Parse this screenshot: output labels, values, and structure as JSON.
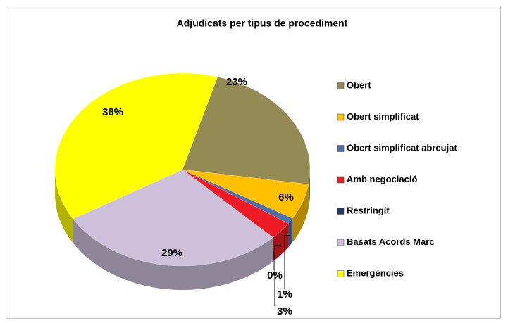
{
  "chart_data": {
    "type": "pie",
    "title": "Adjudicats per tipus de procediment",
    "categories": [
      "Obert",
      "Obert simplificat",
      "Obert simplificat abreujat",
      "Amb negociació",
      "Restringit",
      "Basats Acords Marc",
      "Emergències"
    ],
    "values": [
      23,
      6,
      1,
      3,
      0,
      29,
      38
    ],
    "value_labels": [
      "23%",
      "6%",
      "1%",
      "3%",
      "0%",
      "29%",
      "38%"
    ],
    "colors": [
      "#948a54",
      "#ffc000",
      "#4f6fa8",
      "#ee1c25",
      "#1f3864",
      "#ccc0da",
      "#ffff00"
    ],
    "legend": "right"
  }
}
